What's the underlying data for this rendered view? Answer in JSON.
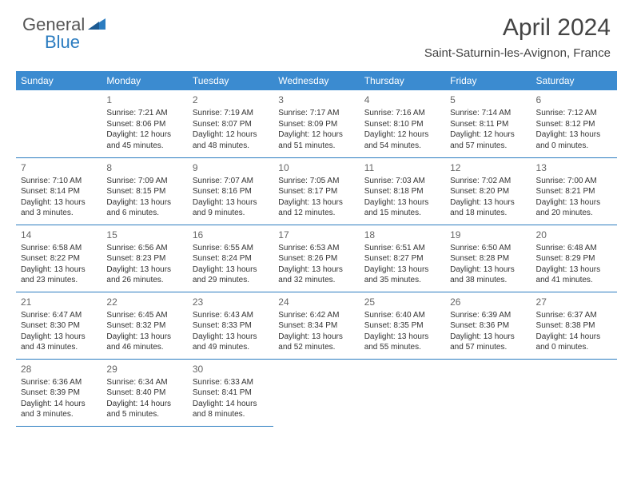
{
  "brand": {
    "part1": "General",
    "part2": "Blue"
  },
  "title": "April 2024",
  "location": "Saint-Saturnin-les-Avignon, France",
  "colors": {
    "header_bg": "#3b8bd0",
    "header_text": "#ffffff",
    "border": "#2b7cc0",
    "text": "#333333",
    "daynum": "#666666",
    "brand_gray": "#555555",
    "brand_blue": "#2b7cc0"
  },
  "weekdays": [
    "Sunday",
    "Monday",
    "Tuesday",
    "Wednesday",
    "Thursday",
    "Friday",
    "Saturday"
  ],
  "grid": [
    [
      null,
      {
        "n": "1",
        "sr": "Sunrise: 7:21 AM",
        "ss": "Sunset: 8:06 PM",
        "d1": "Daylight: 12 hours",
        "d2": "and 45 minutes."
      },
      {
        "n": "2",
        "sr": "Sunrise: 7:19 AM",
        "ss": "Sunset: 8:07 PM",
        "d1": "Daylight: 12 hours",
        "d2": "and 48 minutes."
      },
      {
        "n": "3",
        "sr": "Sunrise: 7:17 AM",
        "ss": "Sunset: 8:09 PM",
        "d1": "Daylight: 12 hours",
        "d2": "and 51 minutes."
      },
      {
        "n": "4",
        "sr": "Sunrise: 7:16 AM",
        "ss": "Sunset: 8:10 PM",
        "d1": "Daylight: 12 hours",
        "d2": "and 54 minutes."
      },
      {
        "n": "5",
        "sr": "Sunrise: 7:14 AM",
        "ss": "Sunset: 8:11 PM",
        "d1": "Daylight: 12 hours",
        "d2": "and 57 minutes."
      },
      {
        "n": "6",
        "sr": "Sunrise: 7:12 AM",
        "ss": "Sunset: 8:12 PM",
        "d1": "Daylight: 13 hours",
        "d2": "and 0 minutes."
      }
    ],
    [
      {
        "n": "7",
        "sr": "Sunrise: 7:10 AM",
        "ss": "Sunset: 8:14 PM",
        "d1": "Daylight: 13 hours",
        "d2": "and 3 minutes."
      },
      {
        "n": "8",
        "sr": "Sunrise: 7:09 AM",
        "ss": "Sunset: 8:15 PM",
        "d1": "Daylight: 13 hours",
        "d2": "and 6 minutes."
      },
      {
        "n": "9",
        "sr": "Sunrise: 7:07 AM",
        "ss": "Sunset: 8:16 PM",
        "d1": "Daylight: 13 hours",
        "d2": "and 9 minutes."
      },
      {
        "n": "10",
        "sr": "Sunrise: 7:05 AM",
        "ss": "Sunset: 8:17 PM",
        "d1": "Daylight: 13 hours",
        "d2": "and 12 minutes."
      },
      {
        "n": "11",
        "sr": "Sunrise: 7:03 AM",
        "ss": "Sunset: 8:18 PM",
        "d1": "Daylight: 13 hours",
        "d2": "and 15 minutes."
      },
      {
        "n": "12",
        "sr": "Sunrise: 7:02 AM",
        "ss": "Sunset: 8:20 PM",
        "d1": "Daylight: 13 hours",
        "d2": "and 18 minutes."
      },
      {
        "n": "13",
        "sr": "Sunrise: 7:00 AM",
        "ss": "Sunset: 8:21 PM",
        "d1": "Daylight: 13 hours",
        "d2": "and 20 minutes."
      }
    ],
    [
      {
        "n": "14",
        "sr": "Sunrise: 6:58 AM",
        "ss": "Sunset: 8:22 PM",
        "d1": "Daylight: 13 hours",
        "d2": "and 23 minutes."
      },
      {
        "n": "15",
        "sr": "Sunrise: 6:56 AM",
        "ss": "Sunset: 8:23 PM",
        "d1": "Daylight: 13 hours",
        "d2": "and 26 minutes."
      },
      {
        "n": "16",
        "sr": "Sunrise: 6:55 AM",
        "ss": "Sunset: 8:24 PM",
        "d1": "Daylight: 13 hours",
        "d2": "and 29 minutes."
      },
      {
        "n": "17",
        "sr": "Sunrise: 6:53 AM",
        "ss": "Sunset: 8:26 PM",
        "d1": "Daylight: 13 hours",
        "d2": "and 32 minutes."
      },
      {
        "n": "18",
        "sr": "Sunrise: 6:51 AM",
        "ss": "Sunset: 8:27 PM",
        "d1": "Daylight: 13 hours",
        "d2": "and 35 minutes."
      },
      {
        "n": "19",
        "sr": "Sunrise: 6:50 AM",
        "ss": "Sunset: 8:28 PM",
        "d1": "Daylight: 13 hours",
        "d2": "and 38 minutes."
      },
      {
        "n": "20",
        "sr": "Sunrise: 6:48 AM",
        "ss": "Sunset: 8:29 PM",
        "d1": "Daylight: 13 hours",
        "d2": "and 41 minutes."
      }
    ],
    [
      {
        "n": "21",
        "sr": "Sunrise: 6:47 AM",
        "ss": "Sunset: 8:30 PM",
        "d1": "Daylight: 13 hours",
        "d2": "and 43 minutes."
      },
      {
        "n": "22",
        "sr": "Sunrise: 6:45 AM",
        "ss": "Sunset: 8:32 PM",
        "d1": "Daylight: 13 hours",
        "d2": "and 46 minutes."
      },
      {
        "n": "23",
        "sr": "Sunrise: 6:43 AM",
        "ss": "Sunset: 8:33 PM",
        "d1": "Daylight: 13 hours",
        "d2": "and 49 minutes."
      },
      {
        "n": "24",
        "sr": "Sunrise: 6:42 AM",
        "ss": "Sunset: 8:34 PM",
        "d1": "Daylight: 13 hours",
        "d2": "and 52 minutes."
      },
      {
        "n": "25",
        "sr": "Sunrise: 6:40 AM",
        "ss": "Sunset: 8:35 PM",
        "d1": "Daylight: 13 hours",
        "d2": "and 55 minutes."
      },
      {
        "n": "26",
        "sr": "Sunrise: 6:39 AM",
        "ss": "Sunset: 8:36 PM",
        "d1": "Daylight: 13 hours",
        "d2": "and 57 minutes."
      },
      {
        "n": "27",
        "sr": "Sunrise: 6:37 AM",
        "ss": "Sunset: 8:38 PM",
        "d1": "Daylight: 14 hours",
        "d2": "and 0 minutes."
      }
    ],
    [
      {
        "n": "28",
        "sr": "Sunrise: 6:36 AM",
        "ss": "Sunset: 8:39 PM",
        "d1": "Daylight: 14 hours",
        "d2": "and 3 minutes."
      },
      {
        "n": "29",
        "sr": "Sunrise: 6:34 AM",
        "ss": "Sunset: 8:40 PM",
        "d1": "Daylight: 14 hours",
        "d2": "and 5 minutes."
      },
      {
        "n": "30",
        "sr": "Sunrise: 6:33 AM",
        "ss": "Sunset: 8:41 PM",
        "d1": "Daylight: 14 hours",
        "d2": "and 8 minutes."
      },
      null,
      null,
      null,
      null
    ]
  ]
}
